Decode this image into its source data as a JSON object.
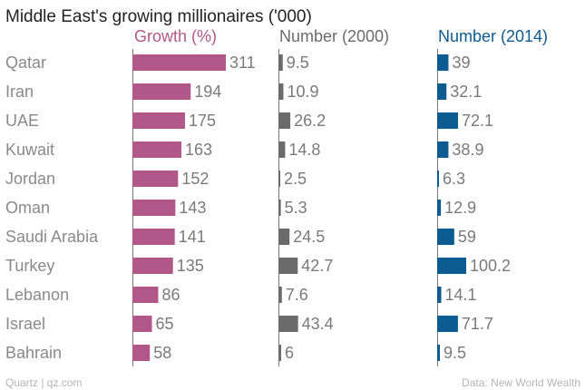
{
  "chart_data": {
    "type": "bar",
    "title": "Middle East's growing millionaires ('000)",
    "categories": [
      "Qatar",
      "Iran",
      "UAE",
      "Kuwait",
      "Jordan",
      "Oman",
      "Saudi Arabia",
      "Turkey",
      "Lebanon",
      "Israel",
      "Bahrain"
    ],
    "series": [
      {
        "name": "Growth (%)",
        "color": "#b2578a",
        "values": [
          311,
          194,
          175,
          163,
          152,
          143,
          141,
          135,
          86,
          65,
          58
        ],
        "labels": [
          "311",
          "194",
          "175",
          "163",
          "152",
          "143",
          "141",
          "135",
          "86",
          "65",
          "58"
        ],
        "xlim": [
          0,
          311
        ]
      },
      {
        "name": "Number (2000)",
        "color": "#6b6b6b",
        "values": [
          9.5,
          10.9,
          26.2,
          14.8,
          2.5,
          5.3,
          24.5,
          42.7,
          7.6,
          43.4,
          6
        ],
        "labels": [
          "9.5",
          "10.9",
          "26.2",
          "14.8",
          "2.5",
          "5.3",
          "24.5",
          "42.7",
          "7.6",
          "43.4",
          "6"
        ],
        "xlim": [
          0,
          100.2
        ]
      },
      {
        "name": "Number (2014)",
        "color": "#0d5c91",
        "values": [
          39,
          32.1,
          72.1,
          38.9,
          6.3,
          12.9,
          59,
          100.2,
          14.1,
          71.7,
          9.5
        ],
        "labels": [
          "39",
          "32.1",
          "72.1",
          "38.9",
          "6.3",
          "12.9",
          "59",
          "100.2",
          "14.1",
          "71.7",
          "9.5"
        ],
        "xlim": [
          0,
          100.2
        ]
      }
    ],
    "source_left": "Quartz | qz.com",
    "source_right": "Data: New World Wealth"
  }
}
